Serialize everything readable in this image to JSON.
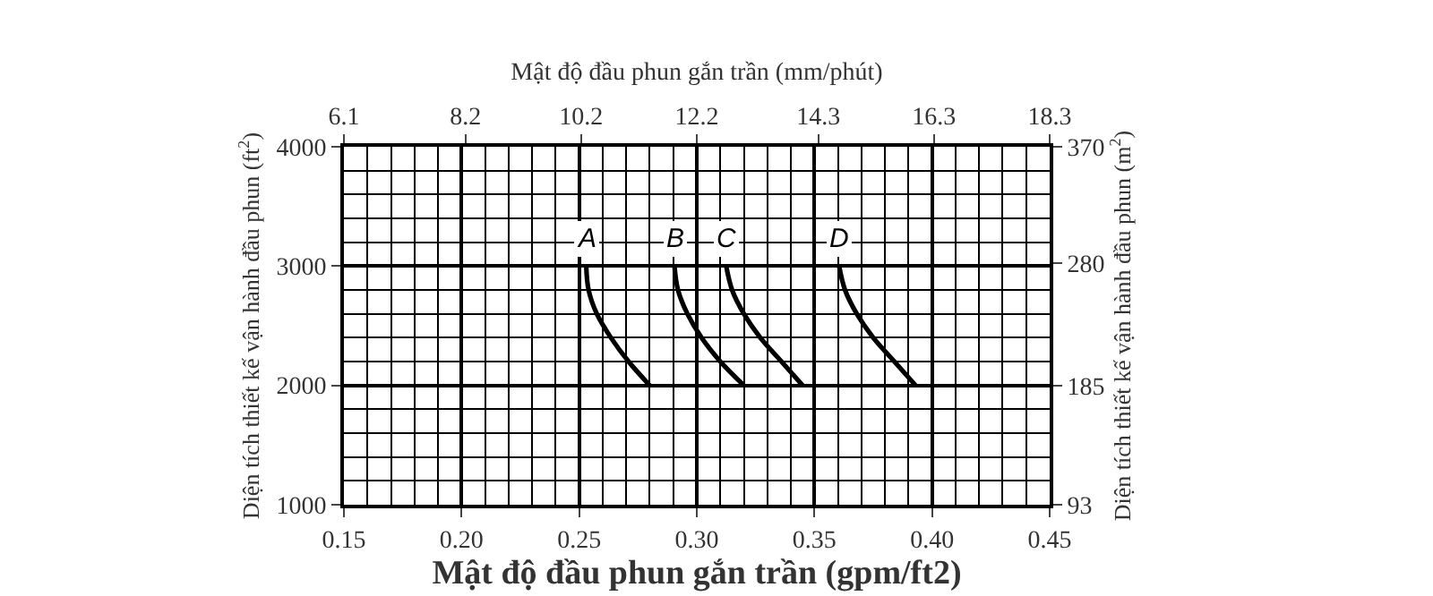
{
  "chart_data": {
    "type": "line",
    "x2label": "Mật độ đầu phun gắn trần (mm/phút)",
    "xlabel": "Mật độ đầu phun gắn trần (gpm/ft2)",
    "ylabel": "Diện tích thiết kế vận hành đầu phun (ft$^{2}$)",
    "y2label": "Diện tích thiết kế vận hành đầu phun (m$^{2}$)",
    "xlim": [
      0.15,
      0.45
    ],
    "xticks": [
      0.15,
      {
        "value": 0.2,
        "label": "0.20"
      },
      0.25,
      {
        "value": 0.3,
        "label": "0.30"
      },
      0.35,
      {
        "value": 0.4,
        "label": "0.40"
      },
      0.45
    ],
    "x2lim": [
      6.1,
      18.3
    ],
    "x2ticks": [
      6.1,
      8.2,
      10.2,
      12.2,
      14.3,
      16.3,
      18.3
    ],
    "ylim": [
      1000,
      4000
    ],
    "yticks": [
      1000,
      2000,
      3000,
      4000
    ],
    "y2lim": [
      93,
      370
    ],
    "y2ticks": [
      93,
      185,
      280,
      370
    ],
    "grid": true,
    "legend": false,
    "marker": "none",
    "line_style": "solid",
    "series": [
      {
        "name": "A",
        "color": "#000000",
        "x": [
          0.253,
          0.254,
          0.2575,
          0.2635,
          0.271,
          0.28
        ],
        "values": [
          3000,
          2800,
          2600,
          2400,
          2200,
          2000
        ]
      },
      {
        "name": "B",
        "color": "#000000",
        "x": [
          0.2905,
          0.292,
          0.296,
          0.302,
          0.31,
          0.32
        ],
        "values": [
          3000,
          2800,
          2600,
          2400,
          2200,
          2000
        ]
      },
      {
        "name": "C",
        "color": "#000000",
        "x": [
          0.3125,
          0.315,
          0.32,
          0.327,
          0.336,
          0.345
        ],
        "values": [
          3000,
          2800,
          2600,
          2400,
          2200,
          2000
        ]
      },
      {
        "name": "D",
        "color": "#000000",
        "x": [
          0.3605,
          0.363,
          0.368,
          0.375,
          0.384,
          0.393
        ],
        "values": [
          3000,
          2800,
          2600,
          2400,
          2200,
          2000
        ]
      }
    ]
  }
}
